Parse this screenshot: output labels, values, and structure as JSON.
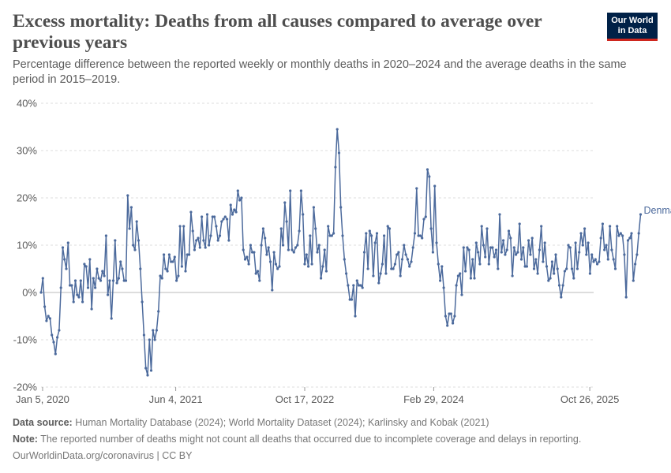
{
  "title": "Excess mortality: Deaths from all causes compared to average over previous years",
  "subtitle": "Percentage difference between the reported weekly or monthly deaths in 2020–2024 and the average deaths in the same period in 2015–2019.",
  "logo": {
    "line1": "Our World",
    "line2": "in Data"
  },
  "footer": {
    "source_label": "Data source:",
    "source_text": "Human Mortality Database (2024); World Mortality Dataset (2024); Karlinsky and Kobak (2021)",
    "note_label": "Note:",
    "note_text": "The reported number of deaths might not count all deaths that occurred due to incomplete coverage and delays in reporting.",
    "license": "OurWorldinData.org/coronavirus | CC BY"
  },
  "colors": {
    "series": "#4c6a9c",
    "grid": "#dddddd",
    "zero": "#bbbbbb",
    "text": "#5b5b5b",
    "logo_bg": "#002147",
    "logo_accent": "#ce261e"
  },
  "chart_data": {
    "type": "line",
    "title": "",
    "xlabel": "",
    "ylabel": "",
    "y_unit": "%",
    "ylim": [
      -20,
      40
    ],
    "yticks": [
      -20,
      -10,
      0,
      10,
      20,
      30,
      40
    ],
    "ytick_labels": [
      "-20%",
      "-10%",
      "0%",
      "10%",
      "20%",
      "30%",
      "40%"
    ],
    "xlim": [
      "2019-12-30",
      "2025-11-10"
    ],
    "xticks": [
      "2020-01-05",
      "2021-06-04",
      "2022-10-17",
      "2024-02-29",
      "2025-10-26"
    ],
    "xtick_labels": [
      "Jan 5, 2020",
      "Jun 4, 2021",
      "Oct 17, 2022",
      "Feb 29, 2024",
      "Oct 26, 2025"
    ],
    "grid": true,
    "legend": "end-of-line label",
    "series": [
      {
        "name": "Denmark",
        "x_start": "2019-12-30",
        "x_step_days": 7,
        "values": [
          0,
          3,
          -3,
          -6,
          -5,
          -5.5,
          -9,
          -10.5,
          -13,
          -9.5,
          -8,
          1,
          9.5,
          7,
          5,
          10.5,
          1.5,
          1.5,
          -2,
          2.5,
          -0.5,
          -1,
          2.5,
          -2,
          6,
          5.5,
          1,
          7,
          -3.5,
          3,
          1,
          5,
          3,
          2.5,
          4.5,
          3.5,
          12,
          -0.5,
          2.5,
          -5.5,
          2.5,
          11,
          2,
          3,
          6.5,
          5,
          2.5,
          2.5,
          20.5,
          13.5,
          18,
          10,
          9,
          15,
          11,
          5,
          -2,
          -9,
          -16,
          -17.5,
          -10,
          -16.5,
          -8,
          -10,
          -8,
          -4,
          3.5,
          3,
          8,
          5,
          4.5,
          8,
          6.5,
          6.5,
          7.5,
          2.5,
          3.5,
          14,
          5.5,
          14,
          4.5,
          8,
          8,
          17,
          13,
          9,
          11,
          11.5,
          9.5,
          16,
          11,
          9.5,
          16.5,
          10,
          12,
          16,
          16,
          14,
          11,
          12,
          15,
          15.5,
          16,
          15.5,
          11,
          18.5,
          16.5,
          17.5,
          17,
          21.5,
          19.5,
          20,
          9,
          7,
          7.5,
          6,
          10,
          8.5,
          8.5,
          4,
          4.5,
          2.5,
          10,
          13.5,
          11.5,
          8,
          9.5,
          6.5,
          0.5,
          8.5,
          6,
          5,
          5.5,
          13.5,
          10,
          19,
          15,
          9,
          21.5,
          9,
          8.5,
          9.5,
          10,
          13,
          21.5,
          16.5,
          6,
          8,
          5.5,
          12,
          6,
          18,
          13.5,
          8.5,
          10,
          3,
          5.5,
          9,
          4.5,
          14,
          12,
          12,
          12.5,
          26.5,
          34.5,
          29.5,
          18,
          12,
          7,
          4,
          1.5,
          -1.5,
          -1.5,
          1.5,
          -5,
          2.5,
          1.5,
          1.5,
          1,
          8.5,
          12.5,
          5,
          13,
          12,
          3.5,
          10.5,
          12.5,
          2,
          4,
          6,
          12,
          4,
          14,
          13.5,
          5,
          5,
          6,
          8,
          8.5,
          3.5,
          7,
          10,
          8,
          7,
          5.5,
          6.5,
          9.5,
          12.5,
          22,
          12,
          12,
          11.5,
          15.5,
          16,
          26,
          24.5,
          13.5,
          8.5,
          22.5,
          10.5,
          6,
          2.5,
          5.5,
          1,
          -5,
          -7,
          -4.5,
          -4.5,
          -6.5,
          -5,
          1.5,
          3.5,
          4,
          -0.5,
          9.5,
          4.5,
          9.5,
          9,
          3,
          7,
          3,
          10.5,
          8.5,
          6,
          14,
          10,
          7.5,
          13.5,
          6,
          9.5,
          9.5,
          7.5,
          9,
          5,
          16.5,
          8.5,
          11,
          8,
          9,
          13,
          11.5,
          3.5,
          9.5,
          8,
          8.5,
          14.5,
          7,
          9.5,
          5.5,
          5.5,
          11,
          8,
          11.5,
          5,
          7,
          4,
          9,
          14,
          6.5,
          10.5,
          5.5,
          2.5,
          3,
          6.5,
          4,
          8,
          5,
          1.5,
          -1,
          1.5,
          4.5,
          5,
          10,
          9.5,
          5,
          3,
          10.5,
          5,
          8.5,
          12.5,
          10,
          13.5,
          8,
          10.5,
          4,
          8,
          6.5,
          7,
          6,
          6.5,
          11.5,
          14.5,
          9,
          10,
          7,
          14,
          9,
          7,
          5,
          14,
          12,
          12.5,
          12,
          8,
          -1,
          11,
          11.5,
          12.5,
          2.5,
          6,
          8,
          12.5,
          16.5
        ]
      }
    ]
  }
}
